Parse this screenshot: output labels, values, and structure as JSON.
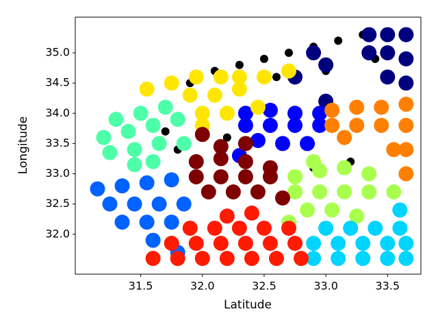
{
  "chart_data": {
    "type": "scatter",
    "xlabel": "Latitude",
    "ylabel": "Longitude",
    "xlim": [
      30.97,
      33.77
    ],
    "ylim": [
      31.34,
      35.59
    ],
    "xticks": [
      31.5,
      {
        "value": 32,
        "label": "32.0"
      },
      32.5,
      {
        "value": 33,
        "label": "33.0"
      },
      33.5
    ],
    "yticks": [
      {
        "value": 32,
        "label": "32.0"
      },
      32.5,
      {
        "value": 33,
        "label": "33.0"
      },
      33.5,
      {
        "value": 34,
        "label": "34.0"
      },
      34.5,
      {
        "value": 35,
        "label": "35.0"
      }
    ],
    "grid": false,
    "series": [
      {
        "color": "#000000",
        "x": [
          31.7,
          31.9,
          32.1,
          32.3,
          32.5,
          32.7,
          32.9,
          33.1,
          33.3,
          32.2,
          32.6,
          33.0,
          33.4,
          31.8,
          32.9,
          33.2
        ],
        "y": [
          33.7,
          34.5,
          34.7,
          34.8,
          34.9,
          35.0,
          35.1,
          35.2,
          35.3,
          33.6,
          34.6,
          34.7,
          34.9,
          33.4,
          33.1,
          33.2
        ]
      },
      {
        "color": "#00007f",
        "x": [
          33.35,
          33.5,
          33.65,
          33.35,
          33.5,
          33.65,
          33.5,
          33.65,
          33.0,
          33.0,
          32.75,
          32.9
        ],
        "y": [
          35.3,
          35.3,
          35.3,
          35.0,
          35.0,
          34.9,
          34.6,
          34.5,
          34.8,
          34.2,
          34.6,
          35.0
        ]
      },
      {
        "color": "#0000ff",
        "x": [
          32.35,
          32.55,
          32.75,
          32.95,
          32.35,
          32.55,
          32.75,
          32.95,
          32.45,
          32.65,
          32.85,
          32.3
        ],
        "y": [
          34.0,
          34.05,
          34.0,
          34.0,
          33.8,
          33.8,
          33.8,
          33.8,
          33.55,
          33.5,
          33.5,
          33.3
        ]
      },
      {
        "color": "#ffe600",
        "x": [
          31.55,
          31.75,
          31.95,
          32.15,
          32.3,
          31.9,
          32.1,
          32.3,
          32.5,
          32.7,
          32.0,
          32.2,
          32.45,
          32.0
        ],
        "y": [
          34.4,
          34.5,
          34.6,
          34.6,
          34.6,
          34.3,
          34.3,
          34.4,
          34.6,
          34.7,
          34.0,
          34.0,
          34.1,
          33.8
        ]
      },
      {
        "color": "#4dffa8",
        "x": [
          31.2,
          31.4,
          31.6,
          31.8,
          31.25,
          31.45,
          31.65,
          31.85,
          31.3,
          31.5,
          31.7,
          31.45,
          31.6
        ],
        "y": [
          33.6,
          33.7,
          33.8,
          33.9,
          33.35,
          33.4,
          33.5,
          33.5,
          33.9,
          34.0,
          34.1,
          33.15,
          33.2
        ]
      },
      {
        "color": "#ff7f00",
        "x": [
          33.05,
          33.25,
          33.45,
          33.65,
          33.05,
          33.25,
          33.45,
          33.65,
          33.55,
          33.65,
          33.65,
          33.15
        ],
        "y": [
          34.05,
          34.1,
          34.1,
          34.15,
          33.8,
          33.8,
          33.8,
          33.8,
          33.4,
          33.4,
          33.0,
          33.6
        ]
      },
      {
        "color": "#0062ff",
        "x": [
          31.15,
          31.35,
          31.55,
          31.75,
          31.25,
          31.45,
          31.65,
          31.85,
          31.35,
          31.55,
          31.75,
          31.6,
          31.8
        ],
        "y": [
          32.75,
          32.8,
          32.85,
          32.9,
          32.5,
          32.5,
          32.5,
          32.5,
          32.2,
          32.2,
          32.2,
          31.9,
          31.7
        ]
      },
      {
        "color": "#a8ff4d",
        "x": [
          32.75,
          32.95,
          33.15,
          33.35,
          32.75,
          32.95,
          33.15,
          33.35,
          33.55,
          32.85,
          33.05,
          33.25,
          32.7,
          32.9
        ],
        "y": [
          32.95,
          33.05,
          33.1,
          33.0,
          32.7,
          32.7,
          32.7,
          32.7,
          32.7,
          32.4,
          32.4,
          32.3,
          32.2,
          33.2
        ]
      },
      {
        "color": "#00d4ff",
        "x": [
          32.9,
          33.1,
          33.3,
          33.5,
          33.65,
          32.9,
          33.1,
          33.3,
          33.5,
          33.65,
          33.0,
          33.2,
          33.4,
          33.6,
          33.6
        ],
        "y": [
          31.6,
          31.6,
          31.6,
          31.6,
          31.6,
          31.85,
          31.85,
          31.85,
          31.85,
          31.85,
          32.1,
          32.1,
          32.1,
          32.1,
          32.4
        ]
      },
      {
        "color": "#ff1a00",
        "x": [
          31.6,
          31.8,
          32.0,
          32.2,
          32.4,
          32.6,
          32.8,
          31.75,
          31.95,
          32.15,
          32.35,
          32.55,
          32.75,
          31.9,
          32.1,
          32.3,
          32.5,
          32.7,
          32.2,
          32.4
        ],
        "y": [
          31.6,
          31.6,
          31.6,
          31.6,
          31.6,
          31.6,
          31.6,
          31.85,
          31.85,
          31.85,
          31.85,
          31.85,
          31.85,
          32.1,
          32.1,
          32.1,
          32.1,
          32.1,
          32.3,
          32.35
        ]
      },
      {
        "color": "#7f0000",
        "x": [
          31.95,
          32.15,
          32.35,
          32.55,
          31.95,
          32.15,
          32.35,
          32.55,
          32.05,
          32.25,
          32.45,
          32.65,
          32.15,
          32.35,
          32.0
        ],
        "y": [
          33.2,
          33.25,
          33.2,
          33.1,
          32.95,
          32.95,
          32.95,
          32.95,
          32.7,
          32.7,
          32.7,
          32.6,
          33.45,
          33.5,
          33.65
        ]
      }
    ]
  }
}
